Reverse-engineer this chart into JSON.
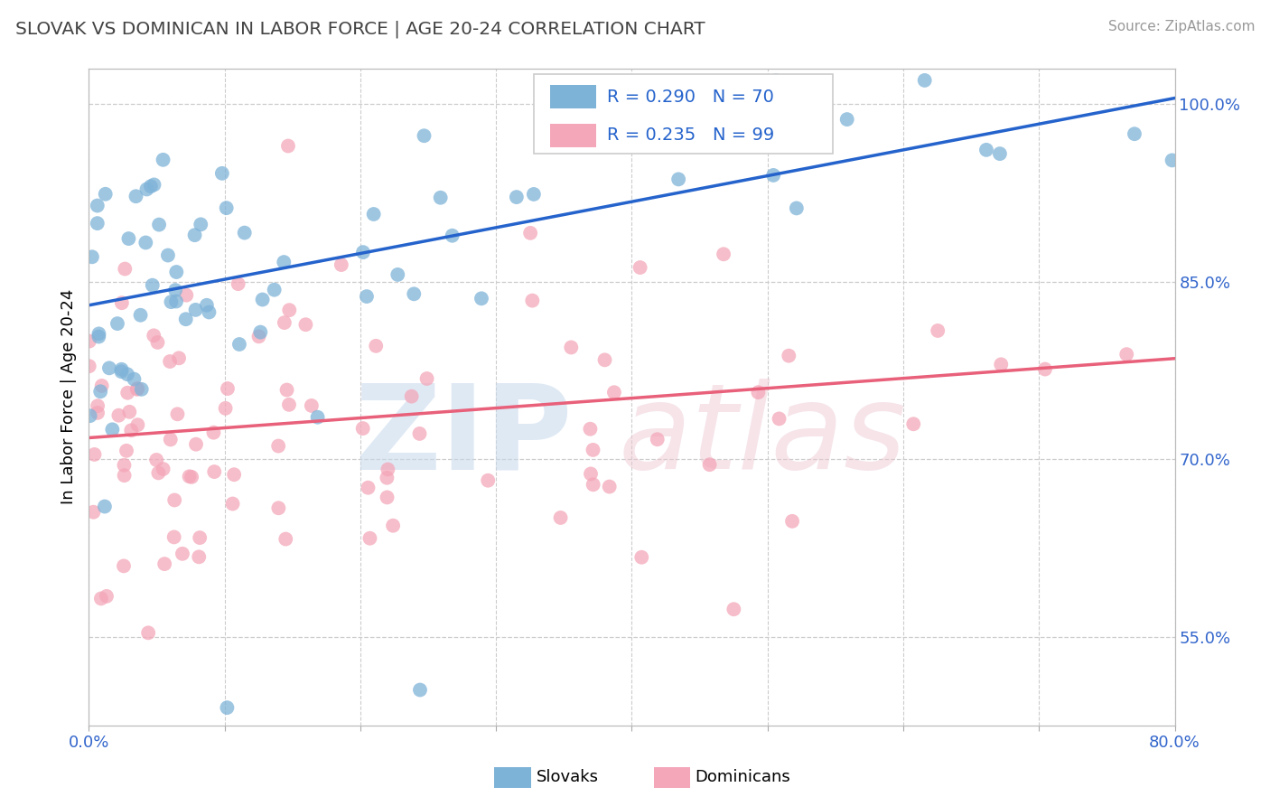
{
  "title": "SLOVAK VS DOMINICAN IN LABOR FORCE | AGE 20-24 CORRELATION CHART",
  "source_text": "Source: ZipAtlas.com",
  "ylabel": "In Labor Force | Age 20-24",
  "xlim": [
    0.0,
    0.8
  ],
  "ylim": [
    0.475,
    1.03
  ],
  "xticks": [
    0.0,
    0.1,
    0.2,
    0.3,
    0.4,
    0.5,
    0.6,
    0.7,
    0.8
  ],
  "xtick_labels": [
    "0.0%",
    "",
    "",
    "",
    "",
    "",
    "",
    "",
    "80.0%"
  ],
  "yticks_right": [
    0.55,
    0.7,
    0.85,
    1.0
  ],
  "ytick_labels_right": [
    "55.0%",
    "70.0%",
    "85.0%",
    "100.0%"
  ],
  "blue_R": 0.29,
  "blue_N": 70,
  "pink_R": 0.235,
  "pink_N": 99,
  "blue_color": "#7EB3D8",
  "pink_color": "#F4A7B9",
  "blue_line_color": "#2563CC",
  "pink_line_color": "#E8607A",
  "legend_R_color": "#2563CC",
  "background_color": "#FFFFFF",
  "grid_color": "#CCCCCC",
  "title_color": "#444444",
  "axis_label_color": "#3366CC",
  "blue_trend_x0": 0.0,
  "blue_trend_y0": 0.83,
  "blue_trend_x1": 0.8,
  "blue_trend_y1": 1.005,
  "pink_trend_x0": 0.0,
  "pink_trend_y0": 0.718,
  "pink_trend_x1": 0.8,
  "pink_trend_y1": 0.785
}
